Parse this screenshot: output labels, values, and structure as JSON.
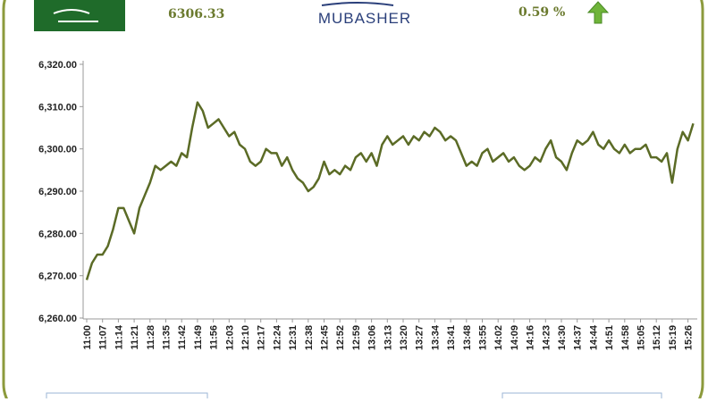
{
  "header": {
    "index_value": "6306.33",
    "logo": "MUBASHER",
    "change": "0.59 %"
  },
  "chart_data": {
    "type": "line",
    "categories": [
      "11:00",
      null,
      null,
      "11:07",
      null,
      null,
      "11:14",
      null,
      null,
      "11:21",
      null,
      null,
      "11:28",
      null,
      null,
      "11:35",
      null,
      null,
      "11:42",
      null,
      null,
      "11:49",
      null,
      null,
      "11:56",
      null,
      null,
      "12:03",
      null,
      null,
      "12:10",
      null,
      null,
      "12:17",
      null,
      null,
      "12:24",
      null,
      null,
      "12:31",
      null,
      null,
      "12:38",
      null,
      null,
      "12:45",
      null,
      null,
      "12:52",
      null,
      null,
      "12:59",
      null,
      null,
      "13:06",
      null,
      null,
      "13:13",
      null,
      null,
      "13:20",
      null,
      null,
      "13:27",
      null,
      null,
      "13:34",
      null,
      null,
      "13:41",
      null,
      null,
      "13:48",
      null,
      null,
      "13:55",
      null,
      null,
      "14:02",
      null,
      null,
      "14:09",
      null,
      null,
      "14:16",
      null,
      null,
      "14:23",
      null,
      null,
      "14:30",
      null,
      null,
      "14:37",
      null,
      null,
      "14:44",
      null,
      null,
      "14:51",
      null,
      null,
      "14:58",
      null,
      null,
      "15:05",
      null,
      null,
      "15:12",
      null,
      null,
      "15:19",
      null,
      null,
      "15:26",
      null
    ],
    "series": [
      {
        "color": "#5b6b26",
        "values": [
          6269,
          6273,
          6275,
          6275,
          6277,
          6281,
          6286,
          6286,
          6283,
          6280,
          6286,
          6289,
          6292,
          6296,
          6295,
          6296,
          6297,
          6296,
          6299,
          6298,
          6305,
          6311,
          6309,
          6305,
          6306,
          6307,
          6305,
          6303,
          6304,
          6301,
          6300,
          6297,
          6296,
          6297,
          6300,
          6299,
          6299,
          6296,
          6298,
          6295,
          6293,
          6292,
          6290,
          6291,
          6293,
          6297,
          6294,
          6295,
          6294,
          6296,
          6295,
          6298,
          6299,
          6297,
          6299,
          6296,
          6301,
          6303,
          6301,
          6302,
          6303,
          6301,
          6303,
          6302,
          6304,
          6303,
          6305,
          6304,
          6302,
          6303,
          6302,
          6299,
          6296,
          6297,
          6296,
          6299,
          6300,
          6297,
          6298,
          6299,
          6297,
          6298,
          6296,
          6295,
          6296,
          6298,
          6297,
          6300,
          6302,
          6298,
          6297,
          6295,
          6299,
          6302,
          6301,
          6302,
          6304,
          6301,
          6300,
          6302,
          6300,
          6299,
          6301,
          6299,
          6300,
          6300,
          6301,
          6298,
          6298,
          6297,
          6299,
          6292,
          6300,
          6304,
          6302,
          6306
        ]
      }
    ],
    "ylim": [
      6260,
      6320
    ],
    "yticks": [
      {
        "value": 6260,
        "label": "6,260.00"
      },
      {
        "value": 6270,
        "label": "6,270.00"
      },
      {
        "value": 6280,
        "label": "6,280.00"
      },
      {
        "value": 6290,
        "label": "6,290.00"
      },
      {
        "value": 6300,
        "label": "6,300.00"
      },
      {
        "value": 6310,
        "label": "6,310.00"
      },
      {
        "value": 6320,
        "label": "6,320.00"
      }
    ]
  }
}
